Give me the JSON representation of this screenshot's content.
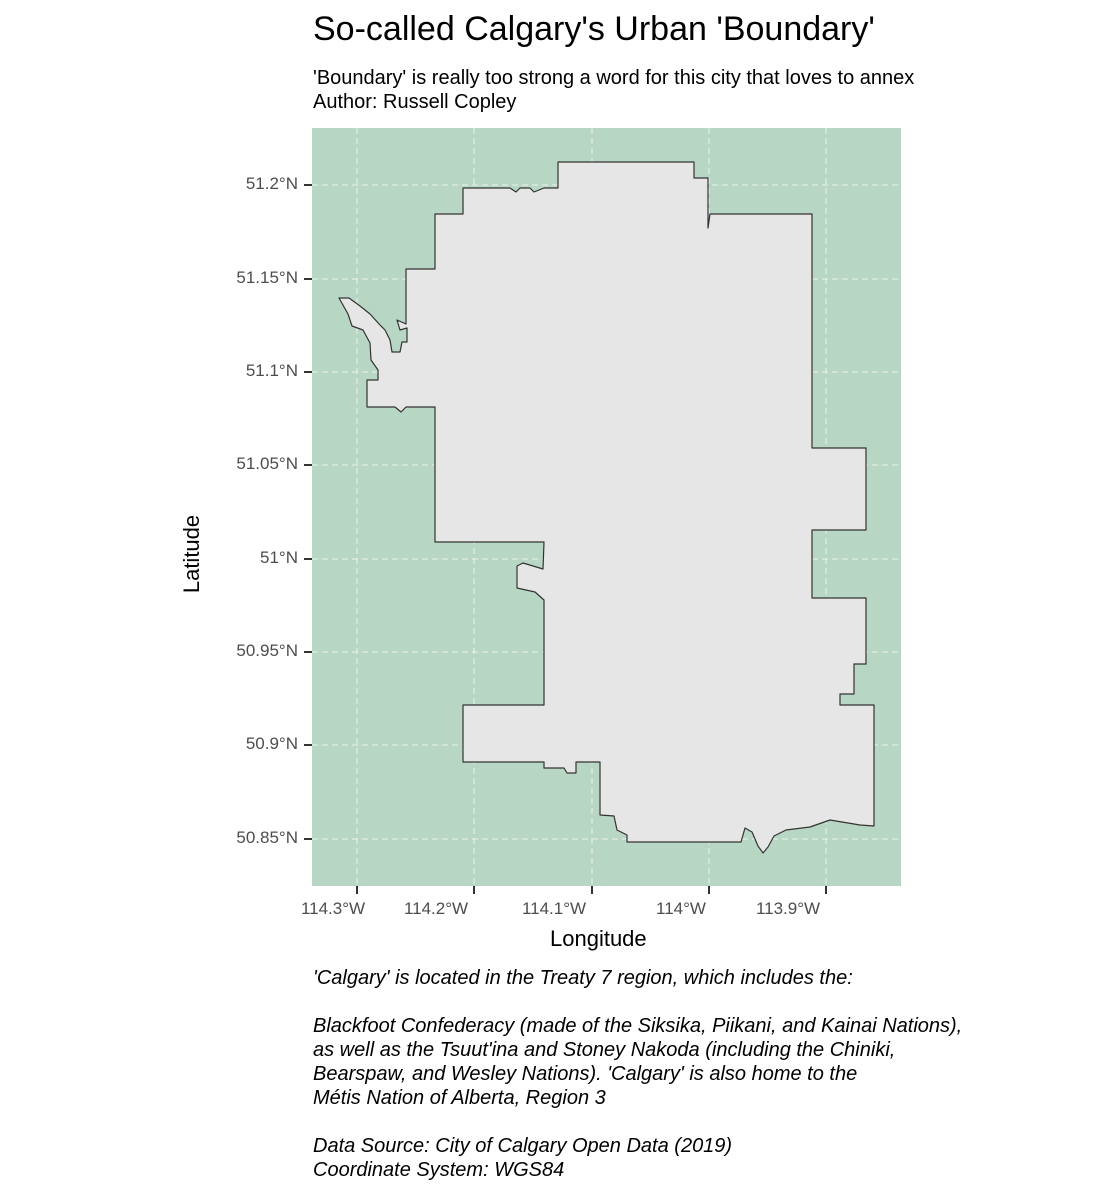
{
  "title": "So-called Calgary's Urban 'Boundary'",
  "subtitle_line1": "'Boundary' is really too strong a word for this city that loves to annex",
  "subtitle_line2": "Author: Russell Copley",
  "x_axis_title": "Longitude",
  "y_axis_title": "Latitude",
  "x_ticks": [
    "114.3°W",
    "114.2°W",
    "114.1°W",
    "114°W",
    "113.9°W"
  ],
  "y_ticks": [
    "51.2°N",
    "51.15°N",
    "51.1°N",
    "51.05°N",
    "51°N",
    "50.95°N",
    "50.9°N",
    "50.85°N"
  ],
  "caption": {
    "line1": "'Calgary' is located in the Treaty 7 region, which includes the:",
    "line2": "Blackfoot Confederacy (made of the Siksika, Piikani, and Kainai Nations),",
    "line3": "as well as the Tsuut'ina and Stoney Nakoda (including the Chiniki,",
    "line4": "Bearspaw, and Wesley Nations). 'Calgary' is also home to the",
    "line5": "Métis Nation of Alberta, Region 3",
    "line6": "Data Source: City of Calgary Open Data (2019)",
    "line7": "Coordinate System: WGS84"
  },
  "colors": {
    "panel_background": "#b8d6c4",
    "city_fill": "#e6e6e6",
    "city_outline": "#333333",
    "grid": "#e8f1ec",
    "tick_label": "#4d4d4d"
  }
}
